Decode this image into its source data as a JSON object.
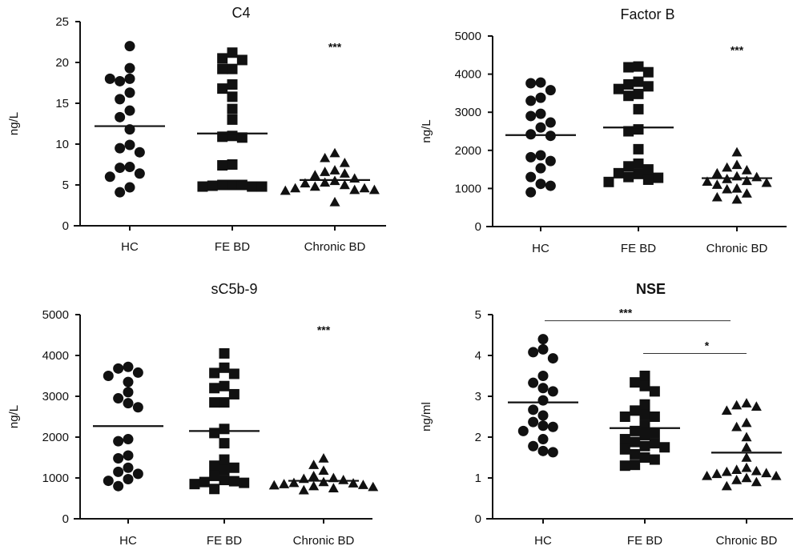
{
  "chart_data": [
    {
      "type": "scatter",
      "title": "C4",
      "title_bold": false,
      "ylabel": "ng/L",
      "ylim": [
        0,
        25
      ],
      "yticks": [
        "0",
        "5",
        "10",
        "15",
        "20",
        "25"
      ],
      "categories": [
        "HC",
        "FE BD",
        "Chronic BD"
      ],
      "markers": [
        "circle",
        "square",
        "triangle"
      ],
      "groups": [
        {
          "values": [
            22,
            19.3,
            17.7,
            18,
            18,
            16.3,
            15.5,
            14.1,
            13.3,
            11.8,
            9.9,
            9.5,
            9,
            7.2,
            6.4,
            6,
            7.1,
            4.7,
            4.1
          ],
          "mean": 12.2
        },
        {
          "values": [
            20.5,
            21.2,
            20.3,
            19.2,
            19.2,
            17.3,
            16.8,
            15.8,
            14.3,
            13,
            11,
            10.8,
            10.9,
            7.5,
            7.4,
            4.9,
            5,
            5,
            4.8,
            4.8,
            5,
            4.8
          ],
          "mean": 11.3
        },
        {
          "values": [
            8.9,
            8.3,
            7.7,
            6.8,
            6.4,
            6.6,
            6.2,
            5.8,
            5.5,
            5.3,
            5.2,
            5,
            4.6,
            4.6,
            4.4,
            4.3,
            4.4,
            4.8,
            2.9
          ],
          "mean": 5.6
        }
      ],
      "significance": [
        {
          "label": "***",
          "group": 2,
          "y": 22
        }
      ]
    },
    {
      "type": "scatter",
      "title": "Factor B",
      "title_bold": false,
      "ylabel": "ng/L",
      "ylim": [
        0,
        5000
      ],
      "yticks": [
        "0",
        "1000",
        "2000",
        "3000",
        "4000",
        "5000"
      ],
      "categories": [
        "HC",
        "FE BD",
        "Chronic BD"
      ],
      "markers": [
        "circle",
        "square",
        "triangle"
      ],
      "groups": [
        {
          "values": [
            3780,
            3760,
            3580,
            3380,
            3300,
            2960,
            2900,
            2730,
            2600,
            2420,
            2380,
            1870,
            1820,
            1720,
            1530,
            1300,
            1120,
            1070,
            900
          ],
          "mean": 2400
        },
        {
          "values": [
            4200,
            4180,
            4050,
            3800,
            3730,
            3680,
            3610,
            3480,
            3430,
            3080,
            2550,
            2500,
            2030,
            1650,
            1580,
            1500,
            1400,
            1380,
            1300,
            1280,
            1230,
            1170
          ],
          "mean": 2600
        },
        {
          "values": [
            1950,
            1620,
            1550,
            1480,
            1400,
            1320,
            1300,
            1250,
            1200,
            1180,
            1150,
            1100,
            1000,
            980,
            870,
            770,
            710
          ],
          "mean": 1270
        }
      ],
      "significance": [
        {
          "label": "***",
          "group": 2,
          "y": 4650
        }
      ]
    },
    {
      "type": "scatter",
      "title": "sC5b-9",
      "title_bold": false,
      "ylabel": "ng/L",
      "ylim": [
        0,
        5000
      ],
      "yticks": [
        "0",
        "1000",
        "2000",
        "3000",
        "4000",
        "5000"
      ],
      "categories": [
        "HC",
        "FE BD",
        "Chronic BD"
      ],
      "markers": [
        "circle",
        "square",
        "triangle"
      ],
      "groups": [
        {
          "values": [
            3720,
            3680,
            3580,
            3500,
            3350,
            3100,
            2950,
            2830,
            2730,
            1950,
            1900,
            1550,
            1480,
            1250,
            1150,
            1100,
            970,
            930,
            800
          ],
          "mean": 2270
        },
        {
          "values": [
            4050,
            3700,
            3570,
            3550,
            3250,
            3200,
            3050,
            2850,
            2850,
            2200,
            2100,
            1850,
            1450,
            1300,
            1250,
            1200,
            1050,
            950,
            920,
            880,
            850,
            900,
            730
          ],
          "mean": 2150
        },
        {
          "values": [
            1480,
            1320,
            1180,
            1050,
            1000,
            980,
            950,
            900,
            880,
            870,
            850,
            830,
            820,
            800,
            780,
            750,
            700
          ],
          "mean": 930
        }
      ],
      "significance": [
        {
          "label": "***",
          "group": 2,
          "y": 4650
        }
      ]
    },
    {
      "type": "scatter",
      "title": "NSE",
      "title_bold": true,
      "ylabel": "ng/ml",
      "ylim": [
        0,
        5
      ],
      "yticks": [
        "0",
        "1",
        "2",
        "3",
        "4",
        "5"
      ],
      "categories": [
        "HC",
        "FE BD",
        "Chronic BD"
      ],
      "markers": [
        "circle",
        "square",
        "triangle"
      ],
      "groups": [
        {
          "values": [
            4.4,
            4.15,
            4.08,
            3.93,
            3.5,
            3.33,
            3.2,
            3.12,
            2.9,
            2.67,
            2.53,
            2.37,
            2.28,
            2.25,
            2.15,
            1.95,
            1.78,
            1.63,
            1.66
          ],
          "mean": 2.85
        },
        {
          "values": [
            3.5,
            3.34,
            3.25,
            3.12,
            2.8,
            2.65,
            2.55,
            2.5,
            2.5,
            2.3,
            2.15,
            2.05,
            2.1,
            1.95,
            1.88,
            1.85,
            1.78,
            1.75,
            1.7,
            1.58,
            1.5,
            1.45,
            1.32,
            1.3
          ],
          "mean": 2.22
        },
        {
          "values": [
            2.83,
            2.78,
            2.75,
            2.65,
            2.35,
            2.25,
            2.0,
            1.75,
            1.5,
            1.25,
            1.2,
            1.17,
            1.15,
            1.12,
            1.1,
            1.05,
            1.05,
            1.0,
            0.95,
            0.9,
            0.8
          ],
          "mean": 1.62
        }
      ],
      "brackets": [
        {
          "label": "***",
          "from": 0,
          "to": 2,
          "y": 4.85
        },
        {
          "label": "*",
          "from": 1,
          "to": 2,
          "y": 4.05
        }
      ]
    }
  ]
}
